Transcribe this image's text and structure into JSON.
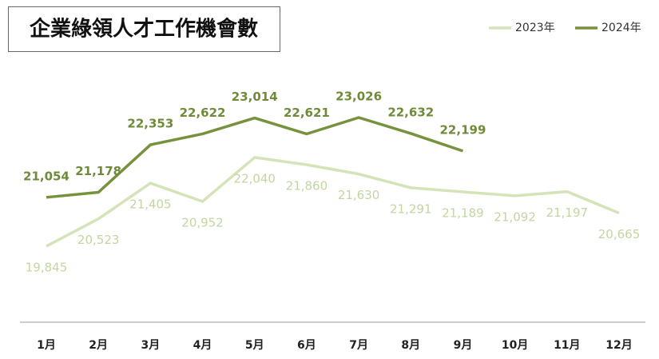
{
  "chart_data": {
    "type": "line",
    "title": "企業綠領人才工作機會數",
    "categories": [
      "1月",
      "2月",
      "3月",
      "4月",
      "5月",
      "6月",
      "7月",
      "8月",
      "9月",
      "10月",
      "11月",
      "12月"
    ],
    "series": [
      {
        "name": "2023年",
        "color": "#d4e4b8",
        "values": [
          19845,
          20523,
          21405,
          20952,
          22040,
          21860,
          21630,
          21291,
          21189,
          21092,
          21197,
          20665
        ],
        "value_labels": [
          "19,845",
          "20,523",
          "21,405",
          "20,952",
          "22,040",
          "21,860",
          "21,630",
          "21,291",
          "21,189",
          "21,092",
          "21,197",
          "20,665"
        ]
      },
      {
        "name": "2024年",
        "color": "#76923c",
        "values": [
          21054,
          21178,
          22353,
          22622,
          23014,
          22621,
          23026,
          22632,
          22199,
          null,
          null,
          null
        ],
        "value_labels": [
          "21,054",
          "21,178",
          "22,353",
          "22,622",
          "23,014",
          "22,621",
          "23,026",
          "22,632",
          "22,199",
          null,
          null,
          null
        ]
      }
    ],
    "legend": "top-right",
    "grid": false
  }
}
